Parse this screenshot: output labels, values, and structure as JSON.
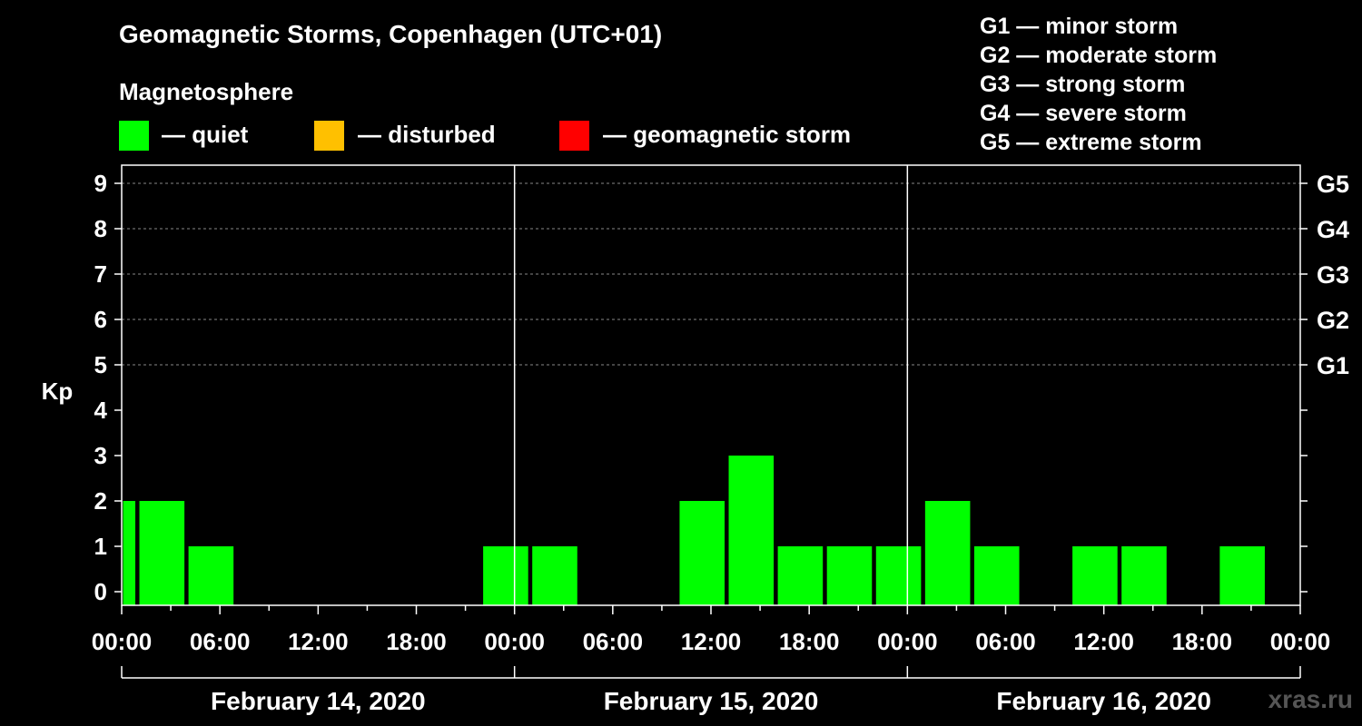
{
  "chart_data": {
    "type": "bar",
    "title": "Geomagnetic Storms, Copenhagen (UTC+01)",
    "subtitle": "Magnetosphere",
    "ylabel": "Kp",
    "ylim": [
      0,
      9
    ],
    "y_ticks": [
      "0",
      "1",
      "2",
      "3",
      "4",
      "5",
      "6",
      "7",
      "8",
      "9"
    ],
    "x_tick_labels": [
      "00:00",
      "06:00",
      "12:00",
      "18:00",
      "00:00",
      "06:00",
      "12:00",
      "18:00",
      "00:00",
      "06:00",
      "12:00",
      "18:00",
      "00:00",
      "06:00",
      "12:00",
      "18:00",
      "00:00"
    ],
    "x_range_hours": [
      0,
      72
    ],
    "days": [
      "February 14, 2020",
      "February 15, 2020",
      "February 16, 2020"
    ],
    "interval_hours": 3,
    "bars": [
      {
        "start": 0,
        "end": 1,
        "kp": 2
      },
      {
        "start": 1,
        "end": 4,
        "kp": 2
      },
      {
        "start": 4,
        "end": 7,
        "kp": 1
      },
      {
        "start": 7,
        "end": 10,
        "kp": 0
      },
      {
        "start": 10,
        "end": 13,
        "kp": 0
      },
      {
        "start": 13,
        "end": 16,
        "kp": 0
      },
      {
        "start": 16,
        "end": 19,
        "kp": 0
      },
      {
        "start": 19,
        "end": 22,
        "kp": 0
      },
      {
        "start": 22,
        "end": 25,
        "kp": 1
      },
      {
        "start": 25,
        "end": 28,
        "kp": 1
      },
      {
        "start": 28,
        "end": 31,
        "kp": 0
      },
      {
        "start": 31,
        "end": 34,
        "kp": 0
      },
      {
        "start": 34,
        "end": 37,
        "kp": 2
      },
      {
        "start": 37,
        "end": 40,
        "kp": 3
      },
      {
        "start": 40,
        "end": 43,
        "kp": 1
      },
      {
        "start": 43,
        "end": 46,
        "kp": 1
      },
      {
        "start": 46,
        "end": 49,
        "kp": 1
      },
      {
        "start": 49,
        "end": 52,
        "kp": 2
      },
      {
        "start": 52,
        "end": 55,
        "kp": 1
      },
      {
        "start": 55,
        "end": 58,
        "kp": 0
      },
      {
        "start": 58,
        "end": 61,
        "kp": 1
      },
      {
        "start": 61,
        "end": 64,
        "kp": 1
      },
      {
        "start": 64,
        "end": 67,
        "kp": 0
      },
      {
        "start": 67,
        "end": 70,
        "kp": 1
      }
    ],
    "right_axis": [
      {
        "kp": 5,
        "label": "G1"
      },
      {
        "kp": 6,
        "label": "G2"
      },
      {
        "kp": 7,
        "label": "G3"
      },
      {
        "kp": 8,
        "label": "G4"
      },
      {
        "kp": 9,
        "label": "G5"
      }
    ],
    "status_colors": {
      "quiet": "#00ff00",
      "disturbed": "#ffc000",
      "storm": "#ff0000"
    },
    "legend": [
      {
        "key": "quiet",
        "label": "— quiet",
        "color": "#00ff00"
      },
      {
        "key": "disturbed",
        "label": "— disturbed",
        "color": "#ffc000"
      },
      {
        "key": "storm",
        "label": "— geomagnetic storm",
        "color": "#ff0000"
      }
    ],
    "storm_levels": [
      "G1 — minor storm",
      "G2 — moderate storm",
      "G3 — strong storm",
      "G4 — severe storm",
      "G5 — extreme storm"
    ]
  },
  "watermark": "xras.ru"
}
